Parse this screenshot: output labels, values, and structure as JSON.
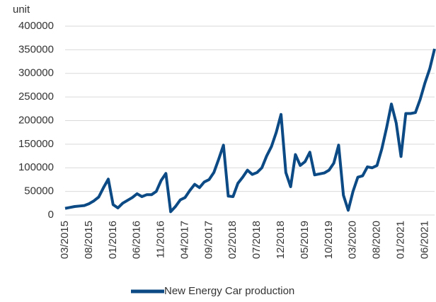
{
  "chart_data": {
    "type": "line",
    "y_label": "unit",
    "categories": [
      "03/2015",
      null,
      null,
      null,
      null,
      "08/2015",
      null,
      null,
      null,
      null,
      "01/2016",
      null,
      null,
      null,
      null,
      "06/2016",
      null,
      null,
      null,
      null,
      "11/2016",
      null,
      null,
      null,
      null,
      "04/2017",
      null,
      null,
      null,
      null,
      "09/2017",
      null,
      null,
      null,
      null,
      "02/2018",
      null,
      null,
      null,
      null,
      "07/2018",
      null,
      null,
      null,
      null,
      "12/2018",
      null,
      null,
      null,
      null,
      "05/2019",
      null,
      null,
      null,
      null,
      "10/2019",
      null,
      null,
      null,
      null,
      "03/2020",
      null,
      null,
      null,
      null,
      "08/2020",
      null,
      null,
      null,
      null,
      "01/2021",
      null,
      null,
      null,
      null,
      "06/2021",
      null,
      null
    ],
    "series": [
      {
        "name": "New Energy Car production",
        "color": "#0b4a84",
        "values": [
          14000,
          16000,
          18000,
          19000,
          20000,
          24000,
          30000,
          38000,
          58000,
          76000,
          22000,
          15000,
          25000,
          31000,
          37000,
          45000,
          39000,
          43000,
          43000,
          50000,
          73000,
          88000,
          7000,
          18000,
          32000,
          37000,
          52000,
          65000,
          58000,
          70000,
          75000,
          90000,
          118000,
          148000,
          40000,
          39000,
          67000,
          80000,
          95000,
          86000,
          90000,
          100000,
          125000,
          145000,
          175000,
          213000,
          90000,
          60000,
          128000,
          105000,
          113000,
          133000,
          85000,
          87000,
          89000,
          95000,
          110000,
          148000,
          42000,
          10000,
          50000,
          80000,
          83000,
          102000,
          100000,
          105000,
          140000,
          185000,
          235000,
          195000,
          124000,
          215000,
          215000,
          217000,
          245000,
          280000,
          310000,
          352000
        ]
      }
    ],
    "ylim": [
      0,
      400000
    ],
    "yticks": [
      0,
      50000,
      100000,
      150000,
      200000,
      250000,
      300000,
      350000,
      400000
    ],
    "grid": true,
    "legend": "bottom"
  }
}
